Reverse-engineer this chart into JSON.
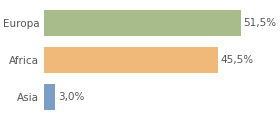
{
  "categories": [
    "Europa",
    "Africa",
    "Asia"
  ],
  "values": [
    51.5,
    45.5,
    3.0
  ],
  "labels": [
    "51,5%",
    "45,5%",
    "3,0%"
  ],
  "bar_colors": [
    "#a8bb8a",
    "#f0b97a",
    "#7b9fc4"
  ],
  "xlim": [
    0,
    58
  ],
  "figsize": [
    2.8,
    1.2
  ],
  "dpi": 100,
  "background_color": "#ffffff",
  "bar_height": 0.72,
  "label_fontsize": 7.5,
  "tick_fontsize": 7.5,
  "grid_color": "#dddddd",
  "text_color": "#555555"
}
